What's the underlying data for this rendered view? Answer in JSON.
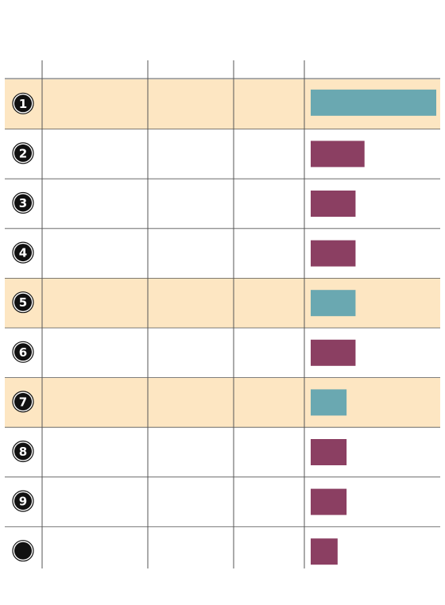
{
  "colors": {
    "highlight_row": "#fde6c2",
    "highlight_bar": "#6aa8b1",
    "normal_bar": "#8b3f62",
    "rule": "#555555",
    "badge_fill": "#111111",
    "badge_text": "#ffffff"
  },
  "header": {
    "columns": [
      "",
      "",
      "",
      "",
      ""
    ]
  },
  "chart_data": {
    "type": "bar",
    "orientation": "horizontal",
    "categories": [
      "1",
      "2",
      "3",
      "4",
      "5",
      "6",
      "7",
      "8",
      "9",
      ""
    ],
    "values": [
      140,
      60,
      50,
      50,
      50,
      50,
      40,
      40,
      40,
      30
    ],
    "highlighted": [
      true,
      false,
      false,
      false,
      true,
      false,
      true,
      false,
      false,
      false
    ],
    "xlim": [
      0,
      140
    ]
  }
}
